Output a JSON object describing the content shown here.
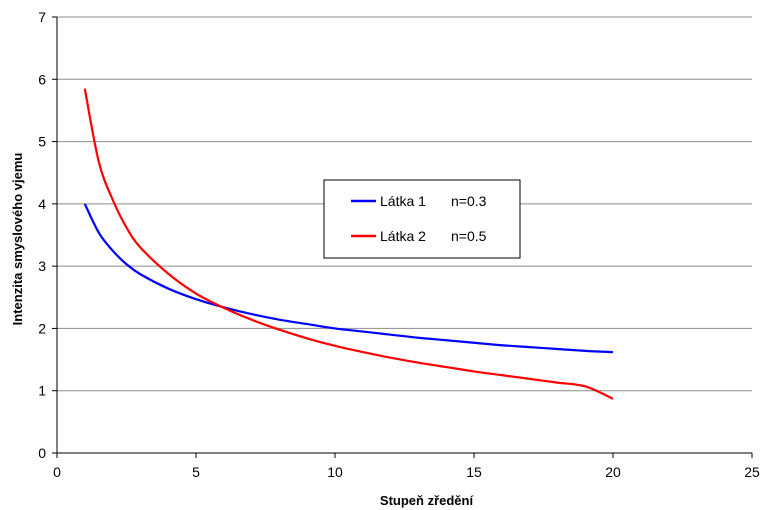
{
  "chart_data": {
    "type": "line",
    "xlabel": "Stupeň zředění",
    "ylabel": "Intenzita smyslového vjemu",
    "xlim": [
      0,
      25
    ],
    "ylim": [
      0,
      7
    ],
    "x_ticks": [
      "0",
      "5",
      "10",
      "15",
      "20",
      "25"
    ],
    "y_ticks": [
      "0",
      "1",
      "2",
      "3",
      "4",
      "5",
      "6",
      "7"
    ],
    "grid": "horizontal",
    "legend_position": "center",
    "series": [
      {
        "name": "Látka 1",
        "label_suffix": "n=0.3",
        "color": "#0000ff",
        "x": [
          1,
          1.5,
          2,
          2.5,
          3,
          4,
          5,
          6,
          7,
          8,
          9,
          10,
          11,
          12,
          13,
          14,
          15,
          16,
          17,
          18,
          19,
          20
        ],
        "y": [
          4.0,
          3.54,
          3.25,
          3.03,
          2.87,
          2.64,
          2.47,
          2.34,
          2.23,
          2.14,
          2.07,
          2.0,
          1.95,
          1.9,
          1.85,
          1.81,
          1.77,
          1.73,
          1.7,
          1.67,
          1.64,
          1.62
        ]
      },
      {
        "name": "Látka 2",
        "label_suffix": "n=0.5",
        "color": "#ff0000",
        "x": [
          1,
          1.5,
          2,
          2.5,
          3,
          4,
          5,
          6,
          7,
          8,
          9,
          10,
          11,
          12,
          13,
          14,
          15,
          16,
          17,
          18,
          19,
          20
        ],
        "y": [
          5.85,
          4.68,
          4.07,
          3.62,
          3.3,
          2.88,
          2.56,
          2.33,
          2.14,
          1.98,
          1.84,
          1.72,
          1.62,
          1.53,
          1.45,
          1.38,
          1.31,
          1.25,
          1.19,
          1.13,
          1.07,
          0.87
        ]
      }
    ]
  }
}
